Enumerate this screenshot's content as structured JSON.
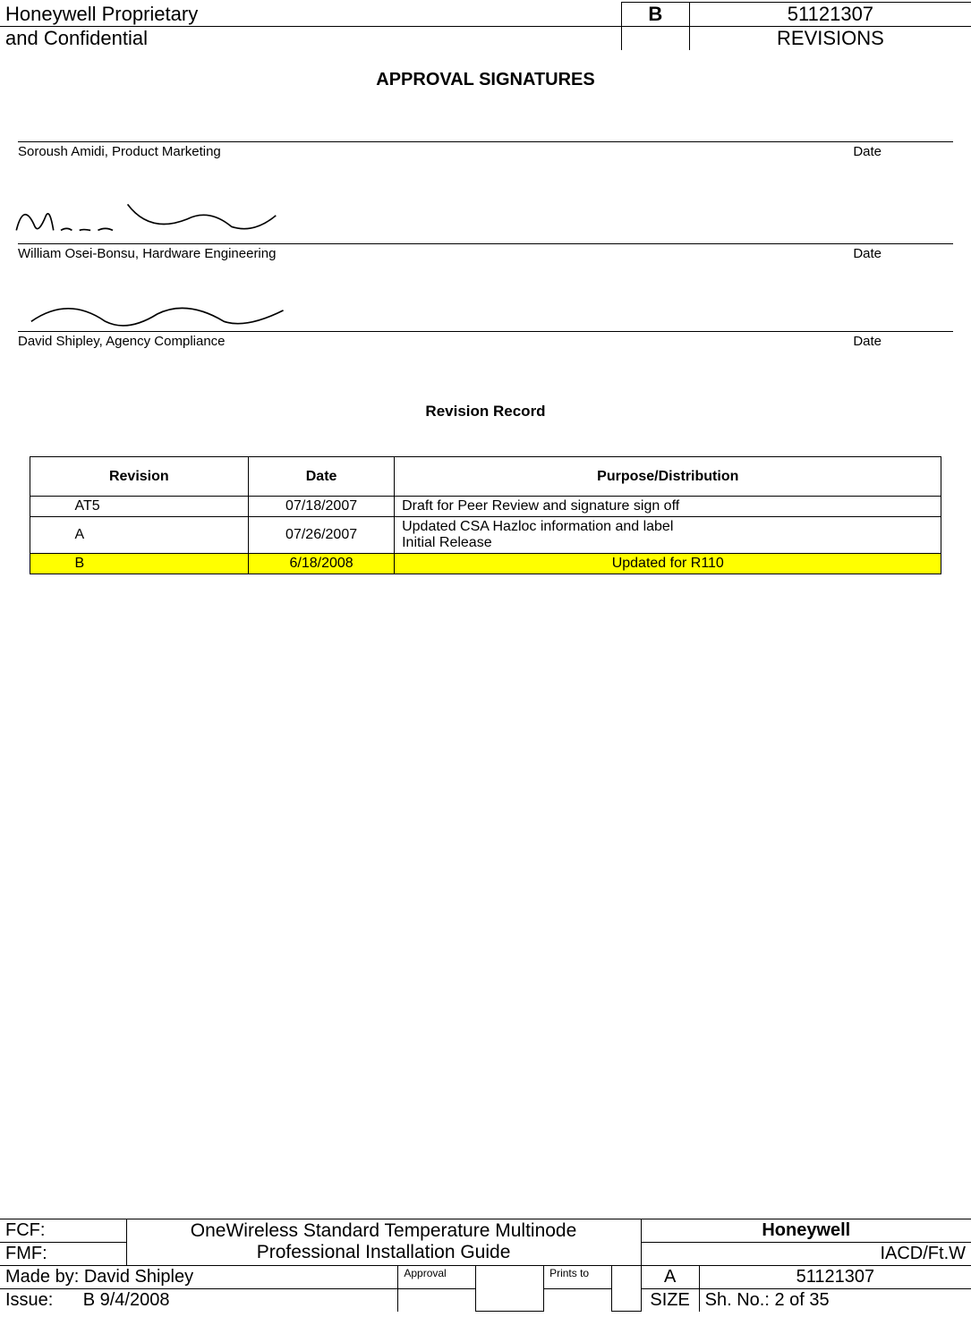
{
  "header": {
    "owner_line1": "Honeywell Proprietary",
    "owner_line2": "and Confidential",
    "rev_letter": "B",
    "doc_number": "51121307",
    "revisions_label": "REVISIONS"
  },
  "signatures": {
    "section_title": "APPROVAL SIGNATURES",
    "rows": [
      {
        "name": "Soroush Amidi, Product Marketing",
        "date_label": "Date"
      },
      {
        "name": "William Osei-Bonsu, Hardware Engineering",
        "date_label": "Date"
      },
      {
        "name": "David Shipley, Agency Compliance",
        "date_label": "Date"
      }
    ]
  },
  "revision_record": {
    "title": "Revision Record",
    "headers": {
      "revision": "Revision",
      "date": "Date",
      "purpose": "Purpose/Distribution"
    },
    "rows": [
      {
        "rev": "AT5",
        "date": "07/18/2007",
        "purpose": "Draft for Peer Review and signature sign off",
        "highlight": false
      },
      {
        "rev": "A",
        "date": "07/26/2007",
        "purpose": "Updated CSA Hazloc information and label\nInitial Release",
        "highlight": false
      },
      {
        "rev": "B",
        "date": "6/18/2008",
        "purpose": "Updated for R110",
        "highlight": true
      }
    ],
    "highlight_color": "#ffff00"
  },
  "footer": {
    "fcf_label": "FCF:",
    "fmf_label": "FMF:",
    "title_line1": "OneWireless Standard Temperature Multinode",
    "title_line2": "Professional Installation Guide",
    "company": "Honeywell",
    "site": "IACD/Ft.W",
    "made_by": "Made by: David Shipley",
    "approval_label": "Approval",
    "prints_to_label": "Prints to",
    "size_letter": "A",
    "doc_number": "51121307",
    "issue_label": "Issue:",
    "issue_value": "B  9/4/2008",
    "size_label": "SIZE",
    "sheet": "Sh. No.: 2 of 35"
  }
}
